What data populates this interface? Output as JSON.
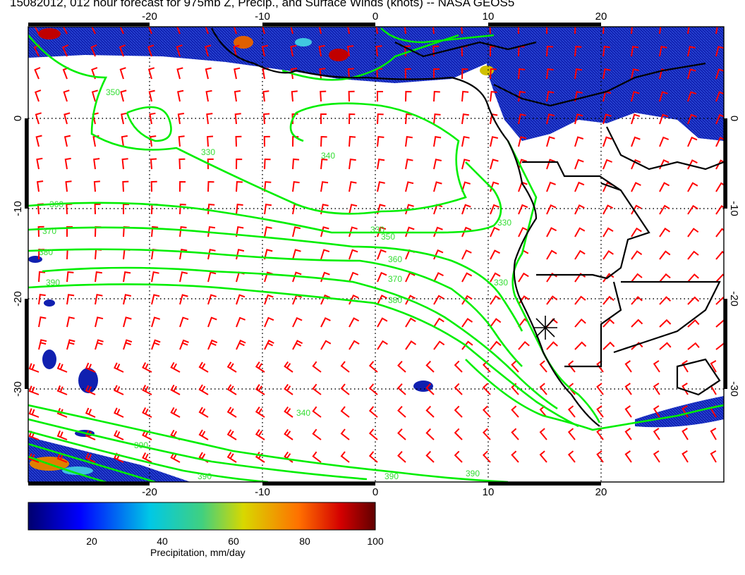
{
  "title": "15082012, 012 hour forecast for 975mb Z, Precip., and Surface Winds (knots) -- NASA GEOS5",
  "map": {
    "lon_ticks": [
      "-20",
      "-10",
      "0",
      "10",
      "20"
    ],
    "lat_ticks": [
      "0",
      "-10",
      "-20",
      "-30"
    ],
    "contour_labels": [
      "350",
      "340",
      "360",
      "370",
      "380",
      "390",
      "330",
      "330",
      "330",
      "340",
      "350",
      "360",
      "370",
      "380",
      "390",
      "390",
      "390",
      "390",
      "330"
    ],
    "marker": "station-star",
    "colors": {
      "wind_barbs": "#ff0000",
      "contours": "#00ee00",
      "coast": "#000000",
      "precip_low": "#00008b"
    }
  },
  "colorbar": {
    "ticks": [
      "20",
      "40",
      "60",
      "80",
      "100"
    ],
    "label": "Precipitation, mm/day",
    "range": [
      0,
      100
    ]
  }
}
